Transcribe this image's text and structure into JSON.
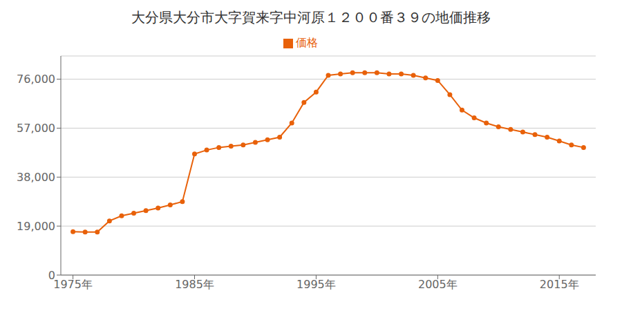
{
  "chart_data": {
    "type": "line",
    "title": "大分県大分市大字賀来字中河原１２００番３９の地価推移",
    "x": [
      1975,
      1976,
      1977,
      1978,
      1979,
      1980,
      1981,
      1982,
      1983,
      1984,
      1985,
      1986,
      1987,
      1988,
      1989,
      1990,
      1991,
      1992,
      1993,
      1994,
      1995,
      1996,
      1997,
      1998,
      1999,
      2000,
      2001,
      2002,
      2003,
      2004,
      2005,
      2006,
      2007,
      2008,
      2009,
      2010,
      2011,
      2012,
      2013,
      2014,
      2015,
      2016,
      2017
    ],
    "series": [
      {
        "name": "価格",
        "color": "#e8610a",
        "values": [
          16800,
          16700,
          16700,
          21000,
          23000,
          24000,
          25000,
          26000,
          27200,
          28500,
          47000,
          48500,
          49500,
          50000,
          50500,
          51500,
          52500,
          53500,
          59000,
          67000,
          71000,
          77500,
          78000,
          78500,
          78500,
          78500,
          78000,
          78000,
          77500,
          76500,
          75500,
          70000,
          64000,
          61000,
          59000,
          57500,
          56500,
          55500,
          54500,
          53500,
          52000,
          50500,
          49500
        ]
      }
    ],
    "xlim": [
      1974,
      2018
    ],
    "xticks": [
      {
        "value": 1975,
        "label": "1975年"
      },
      {
        "value": 1985,
        "label": "1985年"
      },
      {
        "value": 1995,
        "label": "1995年"
      },
      {
        "value": 2005,
        "label": "2005年"
      },
      {
        "value": 2015,
        "label": "2015年"
      }
    ],
    "ylim": [
      0,
      85000
    ],
    "yticks": [
      0,
      {
        "value": 19000,
        "label": "19,000"
      },
      {
        "value": 38000,
        "label": "38,000"
      },
      {
        "value": 57000,
        "label": "57,000"
      },
      {
        "value": 76000,
        "label": "76,000"
      }
    ],
    "grid": "y",
    "legend": "top",
    "marker": "circle"
  }
}
